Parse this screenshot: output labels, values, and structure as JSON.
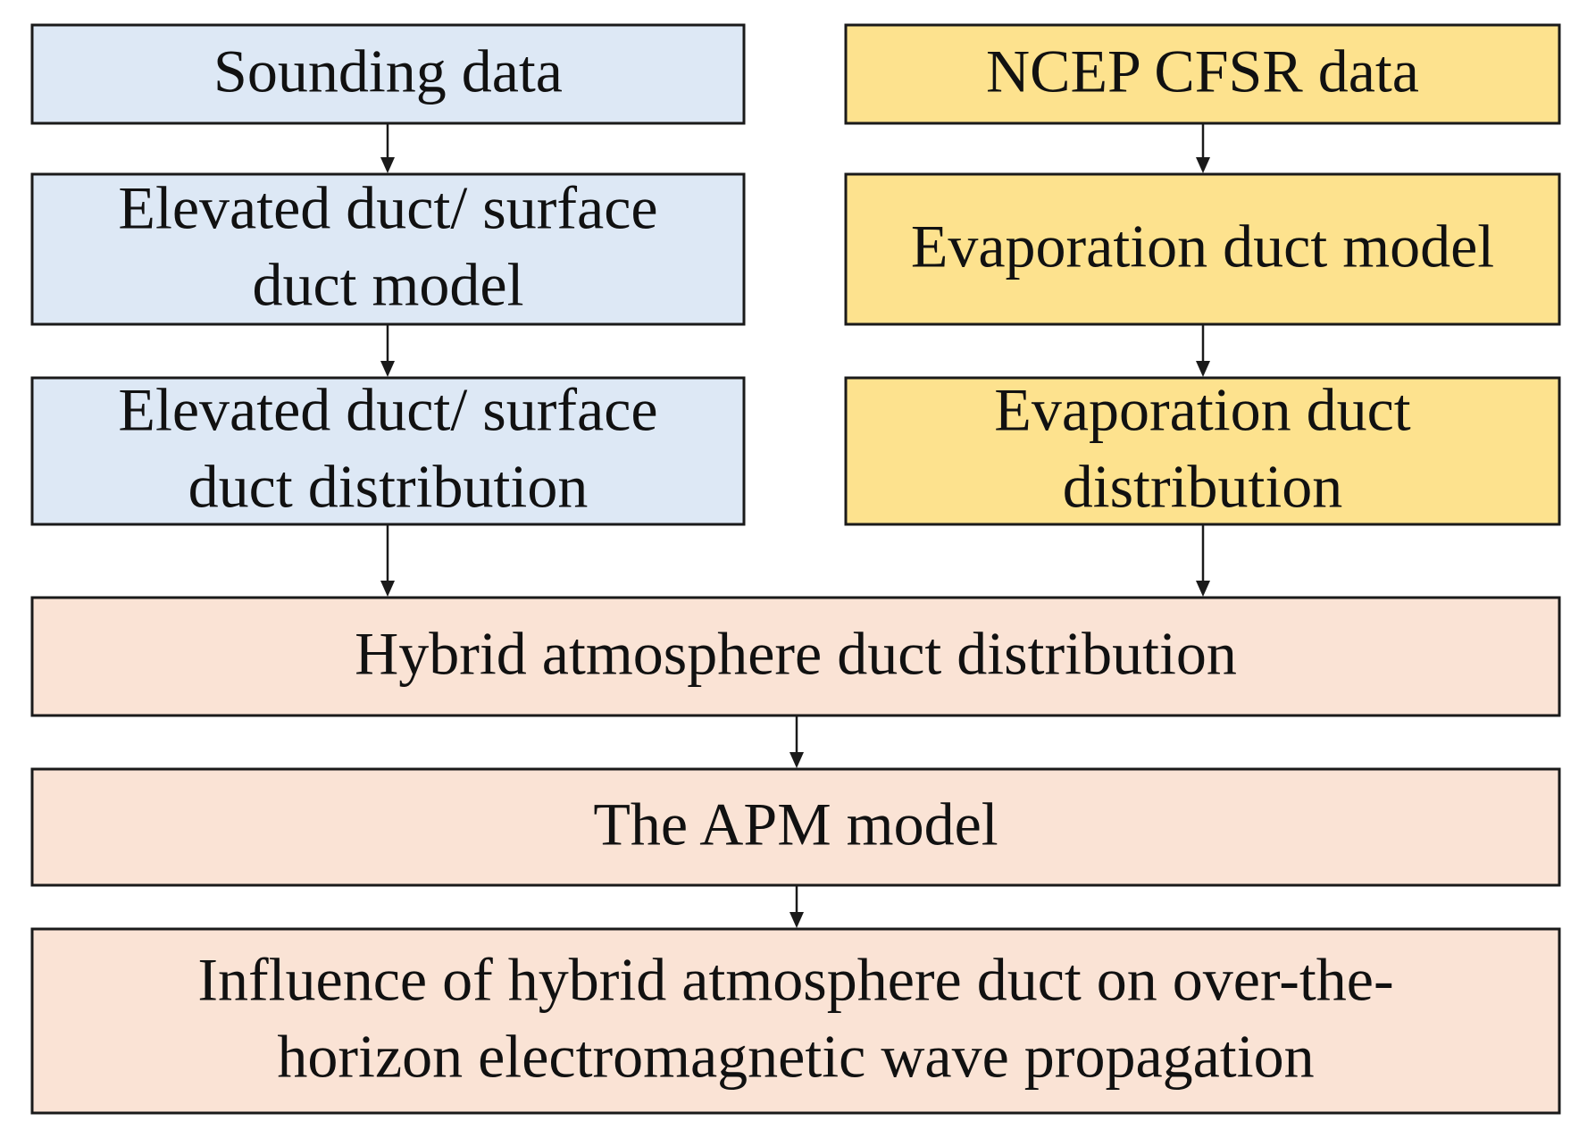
{
  "nodes": [
    {
      "lines": [
        "Sounding data"
      ]
    },
    {
      "lines": [
        "Elevated duct/ surface",
        "duct model"
      ]
    },
    {
      "lines": [
        "Elevated duct/ surface",
        "duct distribution"
      ]
    },
    {
      "lines": [
        "NCEP CFSR data"
      ]
    },
    {
      "lines": [
        "Evaporation duct model"
      ]
    },
    {
      "lines": [
        "Evaporation duct",
        "distribution"
      ]
    },
    {
      "lines": [
        "Hybrid atmosphere duct distribution"
      ]
    },
    {
      "lines": [
        "The APM model"
      ]
    },
    {
      "lines": [
        "Influence of hybrid atmosphere duct on over-the-",
        "horizon electromagnetic wave propagation"
      ]
    }
  ]
}
